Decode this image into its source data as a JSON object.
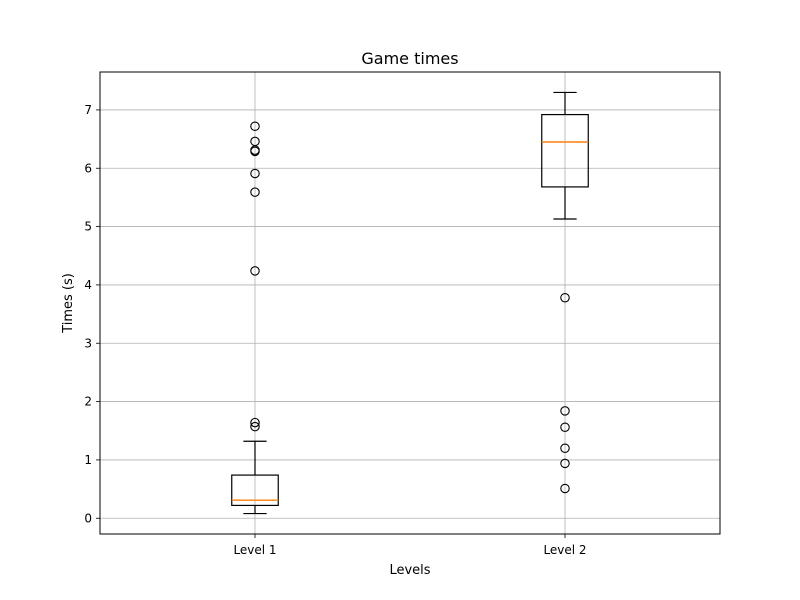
{
  "chart_data": {
    "type": "box",
    "title": "Game times",
    "xlabel": "Levels",
    "ylabel": "Times (s)",
    "categories": [
      "Level 1",
      "Level 2"
    ],
    "ylim": [
      -0.27,
      7.65
    ],
    "yticks": [
      0,
      1,
      2,
      3,
      4,
      5,
      6,
      7
    ],
    "grid": true,
    "series": [
      {
        "category": "Level 1",
        "whisker_low": 0.08,
        "q1": 0.22,
        "median": 0.31,
        "q3": 0.74,
        "whisker_high": 1.32,
        "outliers": [
          1.57,
          1.64,
          4.24,
          5.59,
          5.91,
          6.29,
          6.31,
          6.46,
          6.72
        ]
      },
      {
        "category": "Level 2",
        "whisker_low": 5.13,
        "q1": 5.68,
        "median": 6.45,
        "q3": 6.92,
        "whisker_high": 7.3,
        "outliers": [
          0.51,
          0.94,
          1.2,
          1.56,
          1.84,
          3.78
        ]
      }
    ],
    "colors": {
      "box": "#000000",
      "median": "#ff7f0e",
      "grid": "#b0b0b0",
      "axes": "#000000"
    }
  }
}
